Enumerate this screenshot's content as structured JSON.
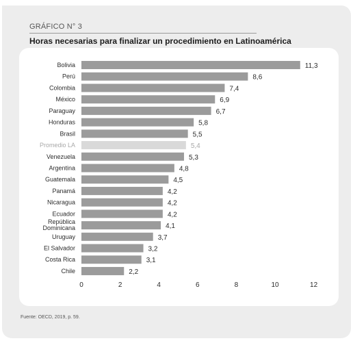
{
  "header": {
    "label": "GRÁFICO N° 3",
    "title": "Horas necesarias para finalizar un procedimiento en Latinoamérica"
  },
  "source": "Fuente: OECD, 2019, p. 59.",
  "colors": {
    "bar": "#9b9b9b",
    "highlight_bar": "#d9d9d9",
    "highlight_text": "#a8a8a8",
    "text": "#2b2b2b"
  },
  "chart_data": {
    "type": "bar",
    "orientation": "horizontal",
    "title": "Horas necesarias para finalizar un procedimiento en Latinoamérica",
    "categories": [
      "Bolivia",
      "Perú",
      "Colombia",
      "México",
      "Paraguay",
      "Honduras",
      "Brasil",
      "Promedio LA",
      "Venezuela",
      "Argentina",
      "Guatemala",
      "Panamá",
      "Nicaragua",
      "Ecuador",
      "República Dominicana",
      "Uruguay",
      "El Salvador",
      "Costa Rica",
      "Chile"
    ],
    "values": [
      11.3,
      8.6,
      7.4,
      6.9,
      6.7,
      5.8,
      5.5,
      5.4,
      5.3,
      4.8,
      4.5,
      4.2,
      4.2,
      4.2,
      4.1,
      3.7,
      3.2,
      3.1,
      2.2
    ],
    "value_labels": [
      "11,3",
      "8,6",
      "7,4",
      "6,9",
      "6,7",
      "5,8",
      "5,5",
      "5,4",
      "5,3",
      "4,8",
      "4,5",
      "4,2",
      "4,2",
      "4,2",
      "4,1",
      "3,7",
      "3,2",
      "3,1",
      "2,2"
    ],
    "highlight_category": "Promedio LA",
    "xlim": [
      0,
      12
    ],
    "xticks": [
      0,
      2,
      4,
      6,
      8,
      10,
      12
    ],
    "xlabel": "",
    "ylabel": "",
    "grid": false,
    "legend": "none"
  }
}
